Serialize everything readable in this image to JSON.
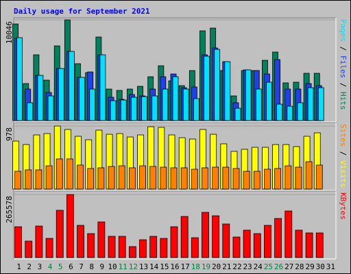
{
  "chart_data": [
    {
      "type": "bar",
      "title": "Daily usage for September 2021",
      "categories": [
        "1",
        "2",
        "3",
        "4",
        "5",
        "6",
        "7",
        "8",
        "9",
        "10",
        "11",
        "12",
        "13",
        "14",
        "15",
        "16",
        "17",
        "18",
        "19",
        "20",
        "21",
        "22",
        "23",
        "24",
        "25",
        "26",
        "27",
        "28",
        "29",
        "30",
        "31"
      ],
      "weekends": [
        "4",
        "5",
        "11",
        "12",
        "18",
        "19",
        "25",
        "26"
      ],
      "weekend_color": "#008040",
      "legend_separator": " / ",
      "ylim": [
        0,
        10046
      ],
      "yticks": [
        10046
      ],
      "series": [
        {
          "name": "Pages",
          "color": "#00e0ff",
          "values": [
            8269,
            1777,
            4510,
            2460,
            5194,
            6902,
            4305,
            3144,
            6561,
            1982,
            2050,
            2324,
            2392,
            2460,
            3144,
            4374,
            3144,
            2187,
            6424,
            7107,
            5877,
            1230,
            5057,
            3144,
            3827,
            1640,
            1435,
            1777,
            3280,
            3280,
            null
          ]
        },
        {
          "name": "Files",
          "color": "#2040e8",
          "values": [
            8201,
            3144,
            4510,
            2802,
            5194,
            6902,
            4305,
            4852,
            6561,
            2324,
            2119,
            2597,
            2460,
            3144,
            4374,
            4647,
            3280,
            3349,
            6561,
            7244,
            5877,
            1777,
            5057,
            4989,
            4647,
            6082,
            3144,
            3144,
            3690,
            3485,
            null
          ]
        },
        {
          "name": "Hits",
          "color": "#00805c",
          "values": [
            9636,
            3690,
            6561,
            4032,
            7449,
            10046,
            5672,
            4784,
            8338,
            3144,
            3007,
            3144,
            3417,
            4374,
            5467,
            3964,
            3485,
            4989,
            8953,
            9226,
            4989,
            2460,
            4989,
            4989,
            6014,
            6834,
            3759,
            3827,
            4716,
            4716,
            null
          ]
        }
      ]
    },
    {
      "type": "bar",
      "ylim": [
        0,
        978
      ],
      "yticks": [
        978
      ],
      "legend_separator": " / ",
      "series": [
        {
          "name": "Sites",
          "color": "#ff8000",
          "values": [
            276,
            298,
            298,
            361,
            468,
            468,
            372,
            319,
            330,
            351,
            361,
            330,
            361,
            351,
            340,
            330,
            330,
            308,
            330,
            340,
            340,
            319,
            276,
            276,
            308,
            319,
            361,
            340,
            425,
            372,
            null
          ]
        },
        {
          "name": "Visits",
          "color": "#ffff00",
          "values": [
            744,
            691,
            840,
            861,
            978,
            925,
            819,
            765,
            914,
            850,
            861,
            808,
            840,
            967,
            957,
            840,
            797,
            776,
            925,
            850,
            702,
            585,
            617,
            648,
            648,
            691,
            691,
            659,
            819,
            872,
            null
          ]
        }
      ]
    },
    {
      "type": "bar",
      "ylim": [
        0,
        265578
      ],
      "yticks": [
        265578
      ],
      "series": [
        {
          "name": "KBytes",
          "color": "#ff0000",
          "values": [
            129900,
            69300,
            132800,
            80800,
            199200,
            265578,
            135700,
            101000,
            150100,
            89500,
            89500,
            46200,
            75100,
            89500,
            80800,
            129900,
            173200,
            83700,
            190500,
            176100,
            141500,
            86600,
            115500,
            101000,
            135700,
            164600,
            196300,
            115500,
            103900,
            103900,
            null
          ]
        }
      ]
    }
  ]
}
